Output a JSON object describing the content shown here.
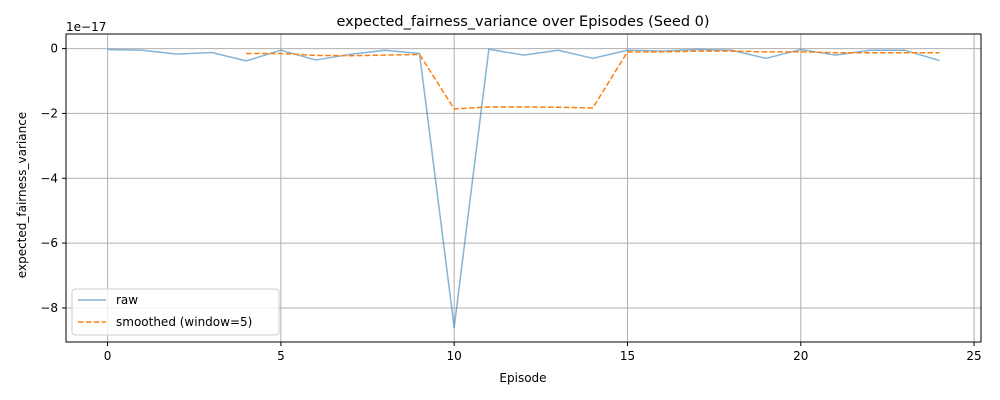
{
  "chart_data": {
    "type": "line",
    "title": "expected_fairness_variance over Episodes (Seed 0)",
    "xlabel": "Episode",
    "ylabel": "expected_fairness_variance",
    "y_offset_label": "1e−17",
    "xlim": [
      -1.2,
      25.2
    ],
    "ylim": [
      -9.05,
      0.45
    ],
    "x_ticks": [
      0,
      5,
      10,
      15,
      20,
      25
    ],
    "x_tick_labels": [
      "0",
      "5",
      "10",
      "15",
      "20",
      "25"
    ],
    "y_ticks": [
      -8,
      -6,
      -4,
      -2,
      0
    ],
    "y_tick_labels": [
      "−8",
      "−6",
      "−4",
      "−2",
      "0"
    ],
    "grid": true,
    "legend_position": "lower-left",
    "series": [
      {
        "name": "raw",
        "color": "#1f77b4",
        "style": "solid",
        "x": [
          0,
          1,
          2,
          3,
          4,
          5,
          6,
          7,
          8,
          9,
          10,
          11,
          12,
          13,
          14,
          15,
          16,
          17,
          18,
          19,
          20,
          21,
          22,
          23,
          24
        ],
        "values": [
          -0.03,
          -0.05,
          -0.17,
          -0.12,
          -0.38,
          -0.05,
          -0.35,
          -0.18,
          -0.05,
          -0.15,
          -8.6,
          -0.02,
          -0.2,
          -0.05,
          -0.3,
          -0.05,
          -0.08,
          -0.03,
          -0.05,
          -0.3,
          -0.03,
          -0.2,
          -0.05,
          -0.05,
          -0.37
        ]
      },
      {
        "name": "smoothed (window=5)",
        "color": "#ff7f0e",
        "style": "dashed",
        "x": [
          4,
          5,
          6,
          7,
          8,
          9,
          10,
          11,
          12,
          13,
          14,
          15,
          16,
          17,
          18,
          19,
          20,
          21,
          22,
          23,
          24
        ],
        "values": [
          -0.15,
          -0.15,
          -0.21,
          -0.22,
          -0.2,
          -0.18,
          -1.86,
          -1.8,
          -1.8,
          -1.81,
          -1.83,
          -0.1,
          -0.1,
          -0.08,
          -0.08,
          -0.1,
          -0.1,
          -0.13,
          -0.13,
          -0.13,
          -0.13
        ]
      }
    ]
  }
}
